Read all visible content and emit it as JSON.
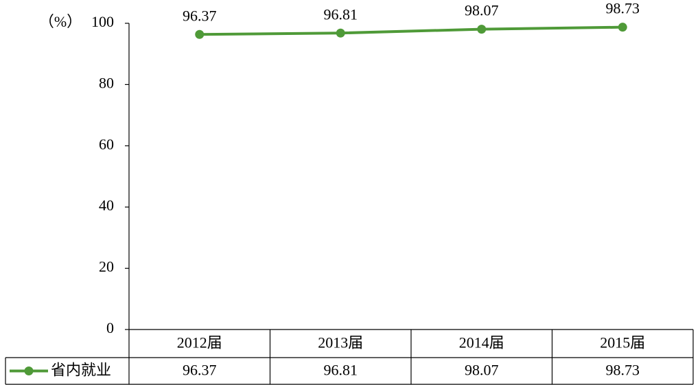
{
  "chart_data": {
    "type": "line",
    "y_label": "（%）",
    "categories": [
      "2012届",
      "2013届",
      "2014届",
      "2015届"
    ],
    "series": [
      {
        "name": "省内就业",
        "color": "#4f9a38",
        "values": [
          96.37,
          96.81,
          98.07,
          98.73
        ]
      }
    ],
    "ylim": [
      0,
      100
    ],
    "yticks": [
      0,
      20,
      40,
      60,
      80,
      100
    ],
    "data_table": true
  }
}
